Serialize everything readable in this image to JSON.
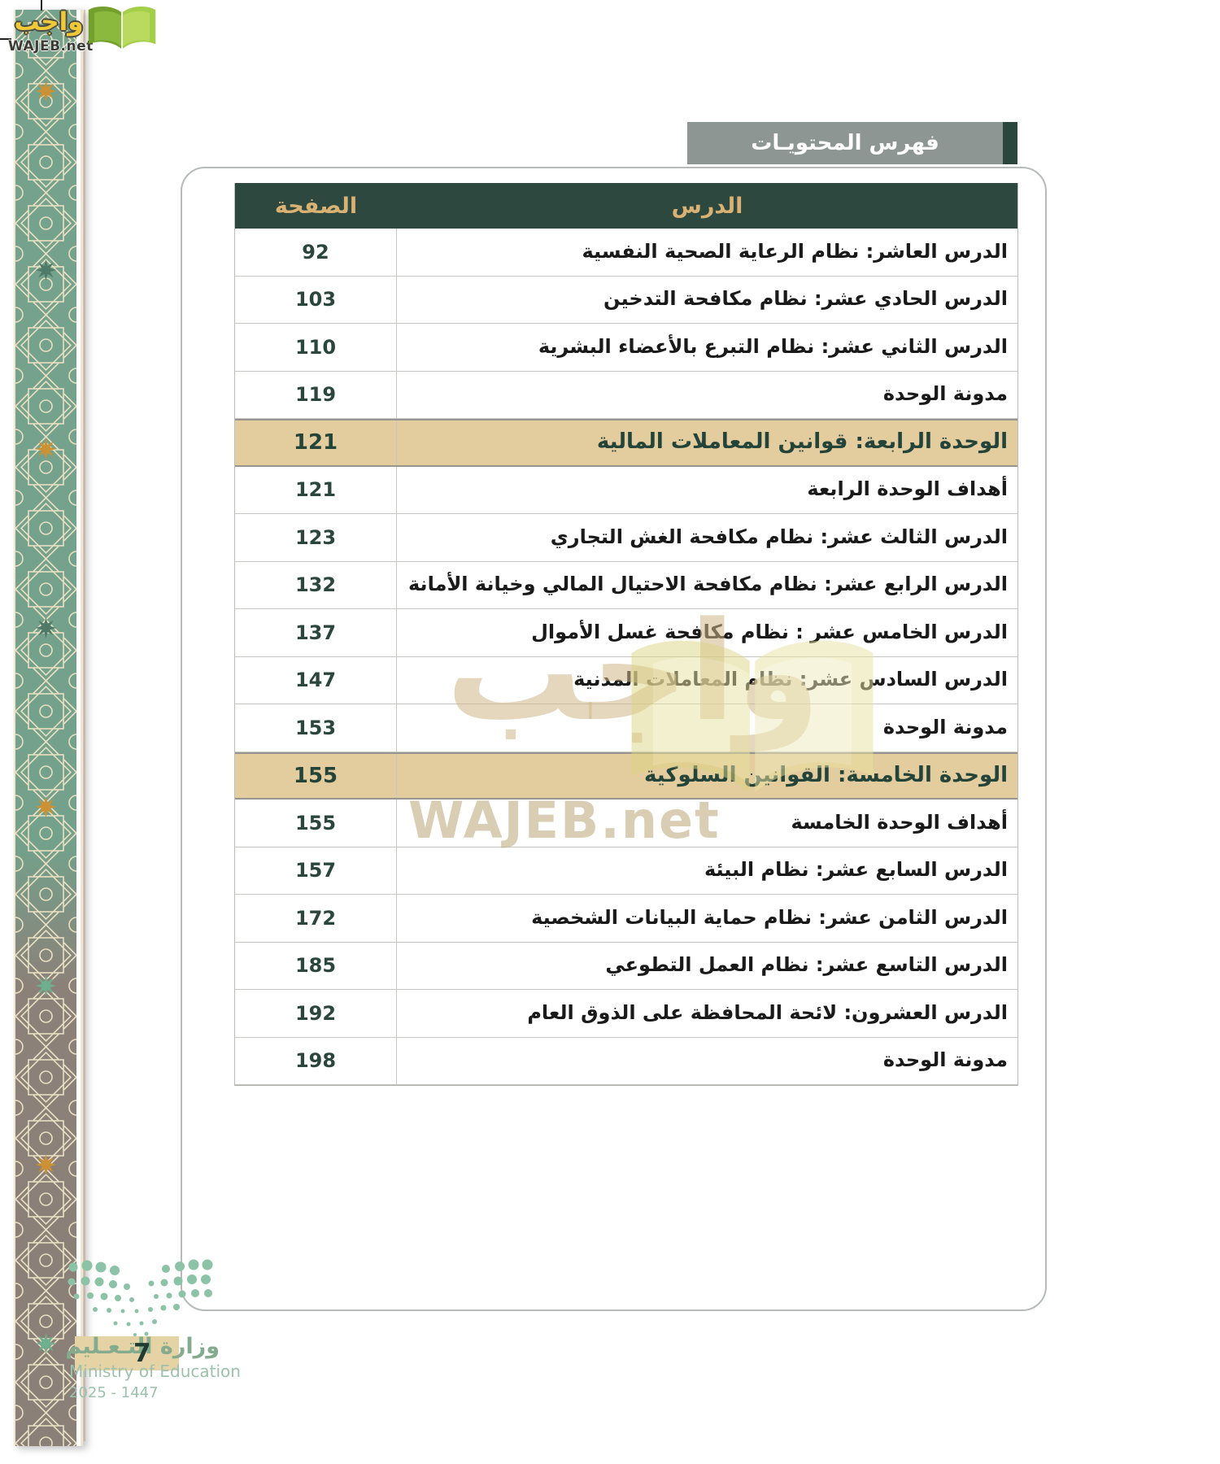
{
  "brand": {
    "name_ar": "واجب",
    "site": "WAJEB.net"
  },
  "page_header": {
    "title": "فهرس المحتويـات"
  },
  "toc": {
    "page_col": "الصفحة",
    "lesson_col": "الدرس",
    "rows": [
      {
        "page": "92",
        "title": "الدرس العاشر: نظام الرعاية الصحية النفسية",
        "type": "lesson"
      },
      {
        "page": "103",
        "title": "الدرس الحادي عشر: نظام مكافحة التدخين",
        "type": "lesson"
      },
      {
        "page": "110",
        "title": "الدرس الثاني عشر: نظام التبرع بالأعضاء البشرية",
        "type": "lesson"
      },
      {
        "page": "119",
        "title": "مدونة الوحدة",
        "type": "lesson"
      },
      {
        "page": "121",
        "title": "الوحدة الرابعة: قوانين المعاملات المالية",
        "type": "unit"
      },
      {
        "page": "121",
        "title": "أهداف الوحدة الرابعة",
        "type": "lesson"
      },
      {
        "page": "123",
        "title": "الدرس الثالث عشر: نظام مكافحة الغش التجاري",
        "type": "lesson"
      },
      {
        "page": "132",
        "title": "الدرس الرابع عشر: نظام مكافحة الاحتيال المالي وخيانة الأمانة",
        "type": "lesson"
      },
      {
        "page": "137",
        "title": "الدرس الخامس عشر : نظام مكافحة غسل الأموال",
        "type": "lesson"
      },
      {
        "page": "147",
        "title": "الدرس السادس عشر: نظام المعاملات المدنية",
        "type": "lesson"
      },
      {
        "page": "153",
        "title": "مدونة الوحدة",
        "type": "lesson"
      },
      {
        "page": "155",
        "title": "الوحدة الخامسة: القوانين السلوكية",
        "type": "unit"
      },
      {
        "page": "155",
        "title": "أهداف الوحدة الخامسة",
        "type": "lesson"
      },
      {
        "page": "157",
        "title": "الدرس السابع عشر: نظام البيئة",
        "type": "lesson"
      },
      {
        "page": "172",
        "title": "الدرس الثامن عشر: نظام حماية البيانات الشخصية",
        "type": "lesson"
      },
      {
        "page": "185",
        "title": "الدرس التاسع عشر: نظام العمل التطوعي",
        "type": "lesson"
      },
      {
        "page": "192",
        "title": "الدرس العشرون: لائحة المحافظة على الذوق العام",
        "type": "lesson"
      },
      {
        "page": "198",
        "title": "مدونة الوحدة",
        "type": "lesson"
      }
    ]
  },
  "watermark": {
    "text_ar": "واجب",
    "text_en": "WAJEB.net"
  },
  "footer": {
    "ministry_ar": "وزارة التـعـليم",
    "ministry_en": "Ministry of Education",
    "edition": "2025 - 1447",
    "page_number": "7"
  },
  "colors": {
    "header_green": "#2c483f",
    "gold": "#d9b273",
    "highlight_tan": "#e3cc9d",
    "bar_gray": "#8e9693",
    "strip_teal": "#74a28c",
    "strip_gray": "#8a8078"
  }
}
